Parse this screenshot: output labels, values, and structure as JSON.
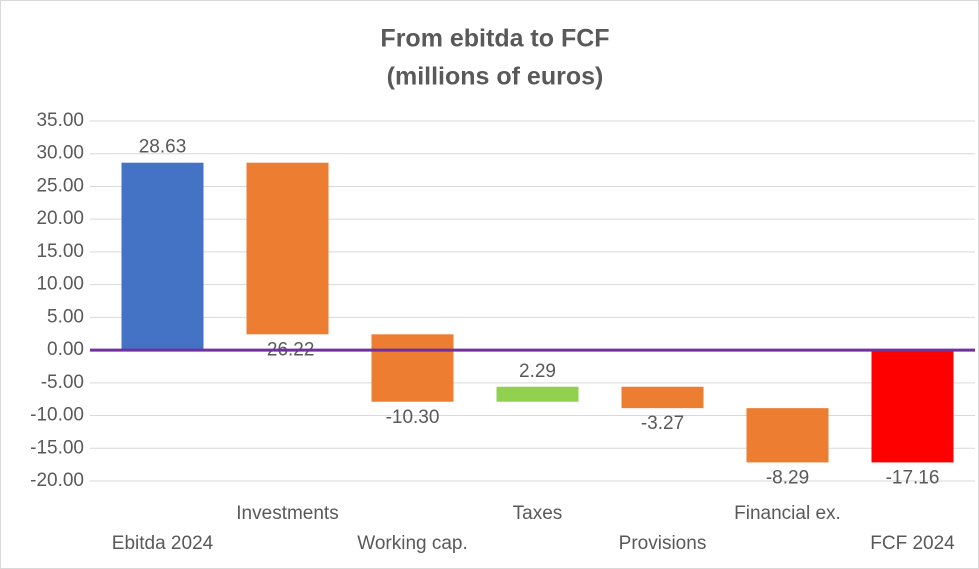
{
  "chart_data": {
    "type": "waterfall",
    "title": "From ebitda to FCF",
    "subtitle": "(millions of euros)",
    "categories": [
      "Ebitda 2024",
      "Investments",
      "Working cap.",
      "Taxes",
      "Provisions",
      "Financial ex.",
      "FCF 2024"
    ],
    "values": [
      28.63,
      -26.22,
      -10.3,
      2.29,
      -3.27,
      -8.29,
      -17.16
    ],
    "value_labels": [
      "28.63",
      "-26.22",
      "-10.30",
      "2.29",
      "-3.27",
      "-8.29",
      "-17.16"
    ],
    "measure": [
      "absolute",
      "relative",
      "relative",
      "relative",
      "relative",
      "relative",
      "total"
    ],
    "colors": [
      "#4472c4",
      "#ed7d31",
      "#ed7d31",
      "#92d050",
      "#ed7d31",
      "#ed7d31",
      "#ff0000"
    ],
    "ylim": [
      -20,
      35
    ],
    "yticks": [
      {
        "value": -20,
        "label": "-20.00"
      },
      {
        "value": -15,
        "label": "-15.00"
      },
      {
        "value": -10,
        "label": "-10.00"
      },
      {
        "value": -5,
        "label": "-5.00"
      },
      {
        "value": 0,
        "label": "0.00"
      },
      {
        "value": 5,
        "label": "5.00"
      },
      {
        "value": 10,
        "label": "10.00"
      },
      {
        "value": 15,
        "label": "15.00"
      },
      {
        "value": 20,
        "label": "20.00"
      },
      {
        "value": 25,
        "label": "25.00"
      },
      {
        "value": 30,
        "label": "30.00"
      },
      {
        "value": 35,
        "label": "35.00"
      }
    ],
    "grid": true,
    "zero_line_color": "#7030a0"
  }
}
